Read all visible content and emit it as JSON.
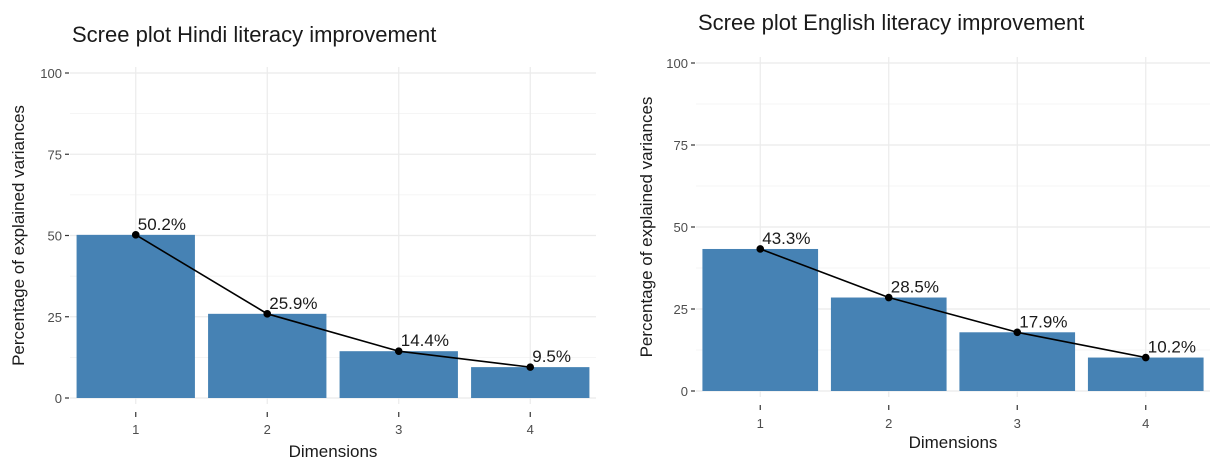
{
  "chart_data": [
    {
      "type": "bar",
      "title": "Scree plot Hindi literacy improvement",
      "xlabel": "Dimensions",
      "ylabel": "Percentage of explained variances",
      "categories": [
        "1",
        "2",
        "3",
        "4"
      ],
      "values": [
        50.2,
        25.9,
        14.4,
        9.5
      ],
      "data_labels": [
        "50.2%",
        "25.9%",
        "14.4%",
        "9.5%"
      ],
      "yticks": [
        0,
        25,
        50,
        75,
        100
      ],
      "ylim": [
        0,
        100
      ],
      "grid": true,
      "bar_color": "#4682B4",
      "line_color": "#000000"
    },
    {
      "type": "bar",
      "title": "Scree plot English literacy improvement",
      "xlabel": "Dimensions",
      "ylabel": "Percentage of explained variances",
      "categories": [
        "1",
        "2",
        "3",
        "4"
      ],
      "values": [
        43.3,
        28.5,
        17.9,
        10.2
      ],
      "data_labels": [
        "43.3%",
        "28.5%",
        "17.9%",
        "10.2%"
      ],
      "yticks": [
        0,
        25,
        50,
        75,
        100
      ],
      "ylim": [
        0,
        100
      ],
      "grid": true,
      "bar_color": "#4682B4",
      "line_color": "#000000"
    }
  ]
}
